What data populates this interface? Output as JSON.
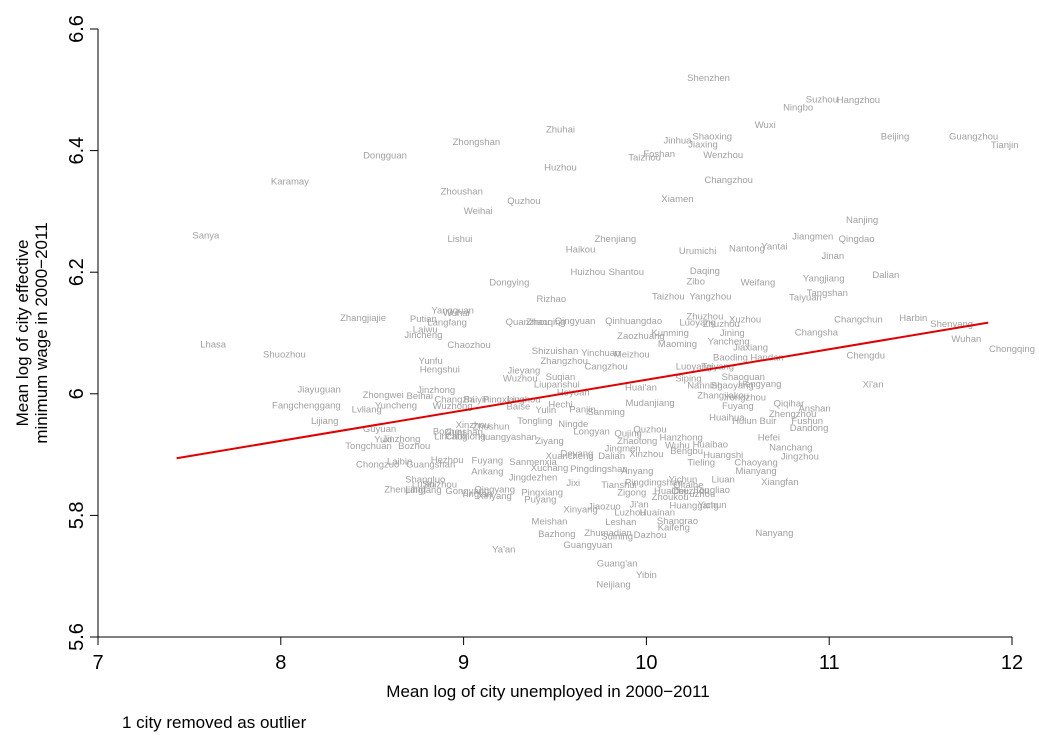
{
  "chart_data": {
    "type": "scatter",
    "title": "",
    "xlabel": "Mean log of city unemployed in 2000−2011",
    "ylabel_lines": [
      "Mean log of city effective",
      "minimum wage in 2000−2011"
    ],
    "xlim": [
      7,
      12
    ],
    "ylim": [
      5.6,
      6.6
    ],
    "x_ticks": [
      7,
      8,
      9,
      10,
      11,
      12
    ],
    "y_ticks": [
      5.6,
      5.8,
      6.0,
      6.2,
      6.4,
      6.6
    ],
    "x_tick_labels": [
      "7",
      "8",
      "9",
      "10",
      "11",
      "12"
    ],
    "y_tick_labels": [
      "5.6",
      "5.8",
      "6",
      "6.2",
      "6.4",
      "6.6"
    ],
    "grid": false,
    "marker_style": "city name text labels",
    "label_color": "#a0a0a0",
    "fit_line": {
      "x": [
        7.43,
        11.87
      ],
      "y": [
        5.894,
        6.117
      ],
      "color": "#e00000"
    },
    "points": [
      {
        "label": "Shenzhen",
        "x": 10.34,
        "y": 6.519
      },
      {
        "label": "Suzhou",
        "x": 10.96,
        "y": 6.484
      },
      {
        "label": "Hangzhou",
        "x": 11.16,
        "y": 6.483
      },
      {
        "label": "Ningbo",
        "x": 10.83,
        "y": 6.471
      },
      {
        "label": "Wuxi",
        "x": 10.65,
        "y": 6.442
      },
      {
        "label": "Zhuhai",
        "x": 9.53,
        "y": 6.435
      },
      {
        "label": "Shaoxing",
        "x": 10.36,
        "y": 6.423
      },
      {
        "label": "Jinhua",
        "x": 10.17,
        "y": 6.417
      },
      {
        "label": "Jiaxing",
        "x": 10.31,
        "y": 6.41
      },
      {
        "label": "Beijing",
        "x": 11.36,
        "y": 6.423
      },
      {
        "label": "Guangzhou",
        "x": 11.79,
        "y": 6.423
      },
      {
        "label": "Tianjin",
        "x": 11.96,
        "y": 6.409
      },
      {
        "label": "Zhongshan",
        "x": 9.07,
        "y": 6.414
      },
      {
        "label": "Dongguan",
        "x": 8.57,
        "y": 6.392
      },
      {
        "label": "Foshan",
        "x": 10.07,
        "y": 6.394
      },
      {
        "label": "Taizhou",
        "x": 9.99,
        "y": 6.389
      },
      {
        "label": "Wenzhou",
        "x": 10.42,
        "y": 6.393
      },
      {
        "label": "Huzhou",
        "x": 9.53,
        "y": 6.372
      },
      {
        "label": "Karamay",
        "x": 8.05,
        "y": 6.349
      },
      {
        "label": "Changzhou",
        "x": 10.45,
        "y": 6.352
      },
      {
        "label": "Zhoushan",
        "x": 8.99,
        "y": 6.333
      },
      {
        "label": "Quzhou",
        "x": 9.33,
        "y": 6.317
      },
      {
        "label": "Xiamen",
        "x": 10.17,
        "y": 6.32
      },
      {
        "label": "Weihai",
        "x": 9.08,
        "y": 6.301
      },
      {
        "label": "Nanjing",
        "x": 11.18,
        "y": 6.286
      },
      {
        "label": "Sanya",
        "x": 7.59,
        "y": 6.26
      },
      {
        "label": "Lishui",
        "x": 8.98,
        "y": 6.255
      },
      {
        "label": "Zhenjiang",
        "x": 9.83,
        "y": 6.255
      },
      {
        "label": "Jiangmen",
        "x": 10.91,
        "y": 6.259
      },
      {
        "label": "Qingdao",
        "x": 11.15,
        "y": 6.255
      },
      {
        "label": "Haikou",
        "x": 9.64,
        "y": 6.237
      },
      {
        "label": "Urumichi",
        "x": 10.28,
        "y": 6.235
      },
      {
        "label": "Nantong",
        "x": 10.55,
        "y": 6.239
      },
      {
        "label": "Yantai",
        "x": 10.7,
        "y": 6.242
      },
      {
        "label": "Jinan",
        "x": 11.02,
        "y": 6.227
      },
      {
        "label": "Huizhou",
        "x": 9.68,
        "y": 6.2
      },
      {
        "label": "Shantou",
        "x": 9.89,
        "y": 6.2
      },
      {
        "label": "Daqing",
        "x": 10.32,
        "y": 6.202
      },
      {
        "label": "Dalian",
        "x": 11.31,
        "y": 6.195
      },
      {
        "label": "Dongying",
        "x": 9.25,
        "y": 6.183
      },
      {
        "label": "Zibo",
        "x": 10.27,
        "y": 6.185
      },
      {
        "label": "Weifang",
        "x": 10.61,
        "y": 6.183
      },
      {
        "label": "Yangjiang",
        "x": 10.97,
        "y": 6.19
      },
      {
        "label": "Tangshan",
        "x": 10.99,
        "y": 6.166
      },
      {
        "label": "Taizhou",
        "x": 10.12,
        "y": 6.16
      },
      {
        "label": "Yangzhou",
        "x": 10.35,
        "y": 6.16
      },
      {
        "label": "Taiyuan",
        "x": 10.87,
        "y": 6.158
      },
      {
        "label": "Rizhao",
        "x": 9.48,
        "y": 6.156
      },
      {
        "label": "Yangquan",
        "x": 8.94,
        "y": 6.137
      },
      {
        "label": "Wuhai",
        "x": 8.96,
        "y": 6.133
      },
      {
        "label": "Zhangjiajie",
        "x": 8.45,
        "y": 6.125
      },
      {
        "label": "Putian",
        "x": 8.78,
        "y": 6.123
      },
      {
        "label": "Langfang",
        "x": 8.91,
        "y": 6.117
      },
      {
        "label": "Laiwu",
        "x": 8.79,
        "y": 6.106
      },
      {
        "label": "Jincheng",
        "x": 8.78,
        "y": 6.097
      },
      {
        "label": "Quanzhou",
        "x": 9.35,
        "y": 6.118
      },
      {
        "label": "Zhaoqing",
        "x": 9.45,
        "y": 6.118
      },
      {
        "label": "Qingyuan",
        "x": 9.61,
        "y": 6.12
      },
      {
        "label": "Qinhuangdao",
        "x": 9.93,
        "y": 6.12
      },
      {
        "label": "Zhuzhou",
        "x": 10.32,
        "y": 6.127
      },
      {
        "label": "Luoyang",
        "x": 10.28,
        "y": 6.117
      },
      {
        "label": "Zhuzhou",
        "x": 10.41,
        "y": 6.115
      },
      {
        "label": "Xuzhou",
        "x": 10.54,
        "y": 6.122
      },
      {
        "label": "Changchun",
        "x": 11.16,
        "y": 6.122
      },
      {
        "label": "Harbin",
        "x": 11.46,
        "y": 6.125
      },
      {
        "label": "Shenyang",
        "x": 11.67,
        "y": 6.115
      },
      {
        "label": "Jining",
        "x": 10.47,
        "y": 6.1
      },
      {
        "label": "Kunming",
        "x": 10.13,
        "y": 6.1
      },
      {
        "label": "Zaozhuang",
        "x": 9.97,
        "y": 6.095
      },
      {
        "label": "Changsha",
        "x": 10.93,
        "y": 6.101
      },
      {
        "label": "Wuhan",
        "x": 11.75,
        "y": 6.09
      },
      {
        "label": "Chongqing",
        "x": 12.0,
        "y": 6.074
      },
      {
        "label": "Lhasa",
        "x": 7.63,
        "y": 6.081
      },
      {
        "label": "Chaozhou",
        "x": 9.03,
        "y": 6.08
      },
      {
        "label": "Yancheng",
        "x": 10.45,
        "y": 6.086
      },
      {
        "label": "Maoming",
        "x": 10.17,
        "y": 6.082
      },
      {
        "label": "Jiaxiang",
        "x": 10.57,
        "y": 6.076
      },
      {
        "label": "Shuozhou",
        "x": 8.02,
        "y": 6.065
      },
      {
        "label": "Shizuishan",
        "x": 9.5,
        "y": 6.07
      },
      {
        "label": "Yinchuan",
        "x": 9.75,
        "y": 6.067
      },
      {
        "label": "Meizhou",
        "x": 9.92,
        "y": 6.065
      },
      {
        "label": "Baoding",
        "x": 10.46,
        "y": 6.06
      },
      {
        "label": "Handan",
        "x": 10.66,
        "y": 6.06
      },
      {
        "label": "Chengdu",
        "x": 11.2,
        "y": 6.063
      },
      {
        "label": "Yunfu",
        "x": 8.82,
        "y": 6.054
      },
      {
        "label": "Zhangzhou",
        "x": 9.55,
        "y": 6.054
      },
      {
        "label": "Cangzhou",
        "x": 9.78,
        "y": 6.045
      },
      {
        "label": "Hengshui",
        "x": 8.87,
        "y": 6.04
      },
      {
        "label": "Jieyang",
        "x": 9.33,
        "y": 6.038
      },
      {
        "label": "Luoyang",
        "x": 10.26,
        "y": 6.045
      },
      {
        "label": "Taiyang",
        "x": 10.39,
        "y": 6.045
      },
      {
        "label": "Wuzhou",
        "x": 9.31,
        "y": 6.025
      },
      {
        "label": "Suqian",
        "x": 9.53,
        "y": 6.028
      },
      {
        "label": "Shaoguan",
        "x": 10.53,
        "y": 6.028
      },
      {
        "label": "Siping",
        "x": 10.23,
        "y": 6.025
      },
      {
        "label": "Liupanshui",
        "x": 9.51,
        "y": 6.015
      },
      {
        "label": "Huai'an",
        "x": 9.97,
        "y": 6.01
      },
      {
        "label": "Nanning",
        "x": 10.32,
        "y": 6.014
      },
      {
        "label": "Shaoyang",
        "x": 10.47,
        "y": 6.014
      },
      {
        "label": "Hengyang",
        "x": 10.62,
        "y": 6.016
      },
      {
        "label": "Xi'an",
        "x": 11.24,
        "y": 6.015
      },
      {
        "label": "Jiayuguan",
        "x": 8.21,
        "y": 6.007
      },
      {
        "label": "Jinzhong",
        "x": 8.85,
        "y": 6.006
      },
      {
        "label": "Zhongwei",
        "x": 8.56,
        "y": 5.998
      },
      {
        "label": "Beihai",
        "x": 8.76,
        "y": 5.996
      },
      {
        "label": "Changzhi",
        "x": 8.95,
        "y": 5.991
      },
      {
        "label": "Baiyin",
        "x": 9.07,
        "y": 5.991
      },
      {
        "label": "Pingxiang",
        "x": 9.22,
        "y": 5.991
      },
      {
        "label": "Liuzhou",
        "x": 9.33,
        "y": 5.991
      },
      {
        "label": "Heyuan",
        "x": 9.6,
        "y": 6.002
      },
      {
        "label": "Zhangjiakou",
        "x": 10.42,
        "y": 5.997
      },
      {
        "label": "Yongzhou",
        "x": 10.54,
        "y": 5.994
      },
      {
        "label": "Fangchenggang",
        "x": 8.14,
        "y": 5.981
      },
      {
        "label": "Yuncheng",
        "x": 8.63,
        "y": 5.981
      },
      {
        "label": "Wuzhong",
        "x": 8.94,
        "y": 5.98
      },
      {
        "label": "Baise",
        "x": 9.3,
        "y": 5.979
      },
      {
        "label": "Hechi",
        "x": 9.53,
        "y": 5.982
      },
      {
        "label": "Mudanjiang",
        "x": 10.02,
        "y": 5.985
      },
      {
        "label": "Fuyang",
        "x": 10.5,
        "y": 5.98
      },
      {
        "label": "Qiqihar",
        "x": 10.78,
        "y": 5.984
      },
      {
        "label": "Lvliang",
        "x": 8.47,
        "y": 5.974
      },
      {
        "label": "Yulin",
        "x": 9.45,
        "y": 5.973
      },
      {
        "label": "Panjin",
        "x": 9.65,
        "y": 5.974
      },
      {
        "label": "Sanming",
        "x": 9.78,
        "y": 5.97
      },
      {
        "label": "Anshan",
        "x": 10.92,
        "y": 5.976
      },
      {
        "label": "Zhengzhou",
        "x": 10.8,
        "y": 5.967
      },
      {
        "label": "Huaihua",
        "x": 10.44,
        "y": 5.961
      },
      {
        "label": "Lijiang",
        "x": 8.24,
        "y": 5.955
      },
      {
        "label": "Tongling",
        "x": 9.39,
        "y": 5.955
      },
      {
        "label": "Ningde",
        "x": 9.6,
        "y": 5.95
      },
      {
        "label": "Fushun",
        "x": 10.88,
        "y": 5.955
      },
      {
        "label": "Hulun Buir",
        "x": 10.59,
        "y": 5.955
      },
      {
        "label": "Dandong",
        "x": 10.89,
        "y": 5.944
      },
      {
        "label": "Xinzhou",
        "x": 9.05,
        "y": 5.949
      },
      {
        "label": "Zhushun",
        "x": 9.15,
        "y": 5.946
      },
      {
        "label": "Guyuan",
        "x": 8.54,
        "y": 5.942
      },
      {
        "label": "Longyan",
        "x": 9.7,
        "y": 5.938
      },
      {
        "label": "Quzhou",
        "x": 10.02,
        "y": 5.941
      },
      {
        "label": "Bozhou",
        "x": 8.92,
        "y": 5.938
      },
      {
        "label": "Guoshan",
        "x": 9.0,
        "y": 5.937
      },
      {
        "label": "Lincang",
        "x": 8.93,
        "y": 5.93
      },
      {
        "label": "Chuxiong",
        "x": 9.01,
        "y": 5.93
      },
      {
        "label": "Huangyashan",
        "x": 9.24,
        "y": 5.929
      },
      {
        "label": "Qujing",
        "x": 9.9,
        "y": 5.935
      },
      {
        "label": "Yuxi",
        "x": 8.56,
        "y": 5.925
      },
      {
        "label": "Jinzhong",
        "x": 8.66,
        "y": 5.926
      },
      {
        "label": "Ziyang",
        "x": 9.47,
        "y": 5.922
      },
      {
        "label": "Zhaotong",
        "x": 9.95,
        "y": 5.922
      },
      {
        "label": "Hanzhong",
        "x": 10.19,
        "y": 5.928
      },
      {
        "label": "Hefei",
        "x": 10.67,
        "y": 5.928
      },
      {
        "label": "Tongchuan",
        "x": 8.48,
        "y": 5.914
      },
      {
        "label": "Bozhou",
        "x": 8.73,
        "y": 5.914
      },
      {
        "label": "Wuhu",
        "x": 10.17,
        "y": 5.915
      },
      {
        "label": "Huaibao",
        "x": 10.35,
        "y": 5.917
      },
      {
        "label": "Jingmen",
        "x": 9.87,
        "y": 5.91
      },
      {
        "label": "Nanchang",
        "x": 10.79,
        "y": 5.912
      },
      {
        "label": "Jingzhou",
        "x": 10.84,
        "y": 5.897
      },
      {
        "label": "Deyang",
        "x": 9.62,
        "y": 5.902
      },
      {
        "label": "Xinzhou",
        "x": 10.0,
        "y": 5.901
      },
      {
        "label": "Bengbu",
        "x": 10.22,
        "y": 5.906
      },
      {
        "label": "Huangshi",
        "x": 10.42,
        "y": 5.899
      },
      {
        "label": "Xuancheng",
        "x": 9.58,
        "y": 5.898
      },
      {
        "label": "Dalian",
        "x": 9.81,
        "y": 5.898
      },
      {
        "label": "Laibin",
        "x": 8.65,
        "y": 5.889
      },
      {
        "label": "Chongzuo",
        "x": 8.53,
        "y": 5.884
      },
      {
        "label": "Hezhou",
        "x": 8.91,
        "y": 5.891
      },
      {
        "label": "Fuyang",
        "x": 9.13,
        "y": 5.89
      },
      {
        "label": "Sanmenxia",
        "x": 9.38,
        "y": 5.888
      },
      {
        "label": "Tieling",
        "x": 10.3,
        "y": 5.887
      },
      {
        "label": "Chaoyang",
        "x": 10.6,
        "y": 5.887
      },
      {
        "label": "Guangshan",
        "x": 8.82,
        "y": 5.884
      },
      {
        "label": "Xuchang",
        "x": 9.47,
        "y": 5.878
      },
      {
        "label": "Pingdingshan",
        "x": 9.74,
        "y": 5.876
      },
      {
        "label": "Anyang",
        "x": 9.95,
        "y": 5.873
      },
      {
        "label": "Mianyang",
        "x": 10.6,
        "y": 5.873
      },
      {
        "label": "Ankang",
        "x": 9.13,
        "y": 5.872
      },
      {
        "label": "Jingdezhen",
        "x": 9.38,
        "y": 5.862
      },
      {
        "label": "Liuan",
        "x": 10.42,
        "y": 5.859
      },
      {
        "label": "Xiangfan",
        "x": 10.73,
        "y": 5.855
      },
      {
        "label": "Shangluo",
        "x": 8.79,
        "y": 5.859
      },
      {
        "label": "Jixi",
        "x": 9.6,
        "y": 5.853
      },
      {
        "label": "Pingdingshan",
        "x": 10.04,
        "y": 5.854
      },
      {
        "label": "Yichun",
        "x": 10.2,
        "y": 5.859
      },
      {
        "label": "Lu'an",
        "x": 8.78,
        "y": 5.851
      },
      {
        "label": "Suizhou",
        "x": 8.87,
        "y": 5.851
      },
      {
        "label": "Tianshui",
        "x": 9.85,
        "y": 5.85
      },
      {
        "label": "Qitaihe",
        "x": 10.23,
        "y": 5.85
      },
      {
        "label": "Zhenjiang",
        "x": 8.68,
        "y": 5.843
      },
      {
        "label": "Lingtang",
        "x": 8.78,
        "y": 5.842
      },
      {
        "label": "Gongyang",
        "x": 9.02,
        "y": 5.84
      },
      {
        "label": "Qingyang",
        "x": 9.17,
        "y": 5.843
      },
      {
        "label": "Zigong",
        "x": 9.92,
        "y": 5.838
      },
      {
        "label": "Huaibei",
        "x": 10.13,
        "y": 5.84
      },
      {
        "label": "Chuzhou",
        "x": 10.24,
        "y": 5.84
      },
      {
        "label": "Tongliao",
        "x": 10.36,
        "y": 5.842
      },
      {
        "label": "Xinyang",
        "x": 9.17,
        "y": 5.832
      },
      {
        "label": "Yingtan",
        "x": 9.07,
        "y": 5.835
      },
      {
        "label": "Pingxiang",
        "x": 9.43,
        "y": 5.838
      },
      {
        "label": "Fuzhou",
        "x": 10.29,
        "y": 5.835
      },
      {
        "label": "Zhoukou",
        "x": 10.13,
        "y": 5.83
      },
      {
        "label": "Puyang",
        "x": 9.42,
        "y": 5.826
      },
      {
        "label": "Jiaozuo",
        "x": 9.77,
        "y": 5.815
      },
      {
        "label": "Ji'an",
        "x": 9.96,
        "y": 5.818
      },
      {
        "label": "Huanggang",
        "x": 10.26,
        "y": 5.816
      },
      {
        "label": "Yichun",
        "x": 10.36,
        "y": 5.817
      },
      {
        "label": "Xinyang",
        "x": 9.64,
        "y": 5.81
      },
      {
        "label": "Luzhou",
        "x": 9.91,
        "y": 5.805
      },
      {
        "label": "Huainan",
        "x": 10.06,
        "y": 5.805
      },
      {
        "label": "Meishan",
        "x": 9.47,
        "y": 5.79
      },
      {
        "label": "Leshan",
        "x": 9.86,
        "y": 5.789
      },
      {
        "label": "Shangrao",
        "x": 10.17,
        "y": 5.791
      },
      {
        "label": "Kaifeng",
        "x": 10.15,
        "y": 5.78
      },
      {
        "label": "Bazhong",
        "x": 9.51,
        "y": 5.769
      },
      {
        "label": "Zhumadian",
        "x": 9.79,
        "y": 5.771
      },
      {
        "label": "Suining",
        "x": 9.84,
        "y": 5.765
      },
      {
        "label": "Dazhou",
        "x": 10.02,
        "y": 5.768
      },
      {
        "label": "Nanyang",
        "x": 10.7,
        "y": 5.771
      },
      {
        "label": "Guangyuan",
        "x": 9.68,
        "y": 5.751
      },
      {
        "label": "Ya'an",
        "x": 9.22,
        "y": 5.744
      },
      {
        "label": "Guang'an",
        "x": 9.84,
        "y": 5.721
      },
      {
        "label": "Yibin",
        "x": 10.0,
        "y": 5.702
      },
      {
        "label": "Neijiang",
        "x": 9.82,
        "y": 5.686
      }
    ]
  },
  "footnote": "1 city removed as outlier"
}
